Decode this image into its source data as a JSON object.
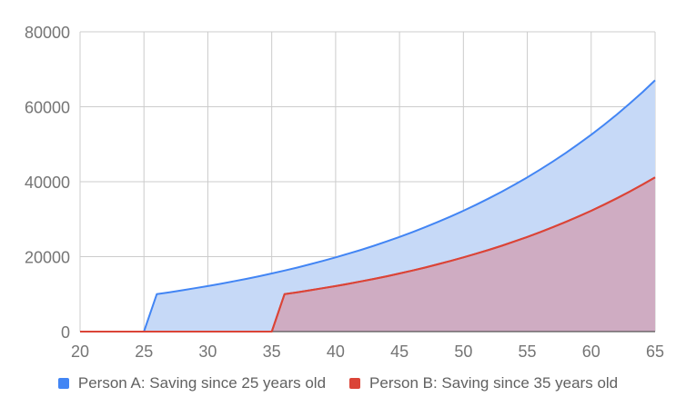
{
  "chart_data": {
    "type": "area",
    "title": "",
    "xlabel": "",
    "ylabel": "",
    "x_ticks": [
      20,
      25,
      30,
      35,
      40,
      45,
      50,
      55,
      60,
      65
    ],
    "y_ticks": [
      0,
      20000,
      40000,
      60000,
      80000
    ],
    "xlim": [
      20,
      65
    ],
    "ylim": [
      0,
      80000
    ],
    "grid": true,
    "legend_position": "bottom",
    "x": [
      20,
      21,
      22,
      23,
      24,
      25,
      26,
      27,
      28,
      29,
      30,
      31,
      32,
      33,
      34,
      35,
      36,
      37,
      38,
      39,
      40,
      41,
      42,
      43,
      44,
      45,
      46,
      47,
      48,
      49,
      50,
      51,
      52,
      53,
      54,
      55,
      56,
      57,
      58,
      59,
      60,
      61,
      62,
      63,
      64,
      65
    ],
    "series": [
      {
        "name": "Person A: Saving since 25 years old",
        "color": "#4285f4",
        "fill": "#c6d9f7",
        "values": [
          0,
          0,
          0,
          0,
          0,
          0,
          10000,
          10500,
          11025,
          11576,
          12155,
          12763,
          13401,
          14071,
          14775,
          15513,
          16289,
          17103,
          17959,
          18856,
          19799,
          20789,
          21829,
          22920,
          24066,
          25270,
          26533,
          27860,
          29253,
          30715,
          32251,
          33864,
          35557,
          37335,
          39201,
          41161,
          43219,
          45380,
          47649,
          50032,
          52533,
          55160,
          57918,
          60814,
          63855,
          67048
        ]
      },
      {
        "name": "Person B: Saving since 35 years old",
        "color": "#db4437",
        "fill": "#cfacc2",
        "values": [
          0,
          0,
          0,
          0,
          0,
          0,
          0,
          0,
          0,
          0,
          0,
          0,
          0,
          0,
          0,
          0,
          10000,
          10500,
          11025,
          11576,
          12155,
          12763,
          13401,
          14071,
          14775,
          15513,
          16289,
          17103,
          17959,
          18856,
          19799,
          20789,
          21829,
          22920,
          24066,
          25270,
          26533,
          27860,
          29253,
          30715,
          32251,
          33864,
          35557,
          37335,
          39201,
          41161
        ]
      }
    ]
  },
  "legend": {
    "items": [
      {
        "label": "Person A: Saving since 25 years old",
        "color": "#4285f4"
      },
      {
        "label": "Person B: Saving since 35 years old",
        "color": "#db4437"
      }
    ]
  }
}
